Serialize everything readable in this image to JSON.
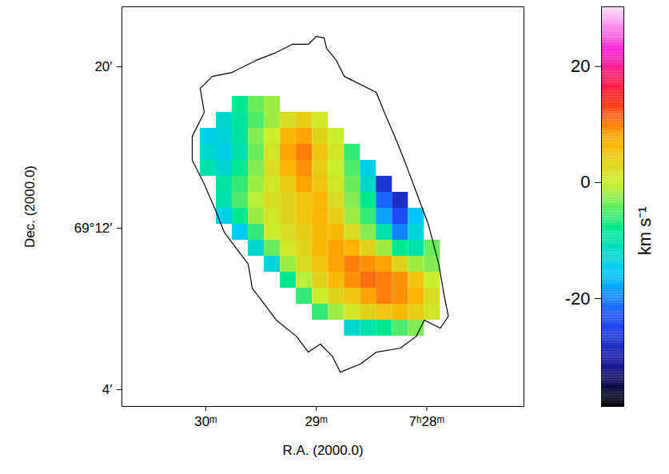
{
  "chart_data": {
    "type": "heatmap",
    "x_label": "R.A. (2000.0)",
    "y_label": "Dec. (2000.0)",
    "xlim": [
      30.76,
      27.12
    ],
    "ylim": [
      3.17,
      22.97
    ],
    "xticks": [
      {
        "value": 30,
        "label": "30ᵐ"
      },
      {
        "value": 29,
        "label": "29ᵐ"
      },
      {
        "value": 28,
        "label": "7ʰ28ᵐ"
      }
    ],
    "yticks": [
      {
        "value": 4,
        "label": "4′"
      },
      {
        "value": 12,
        "label": "69°12′"
      },
      {
        "value": 20,
        "label": "20′"
      }
    ],
    "x_edges": [
      30.051,
      29.906,
      29.761,
      29.616,
      29.471,
      29.326,
      29.181,
      29.036,
      28.891,
      28.746,
      28.601,
      28.457,
      28.312,
      28.167,
      28.022,
      27.877
    ],
    "y_edges": [
      18.535,
      17.743,
      16.95,
      16.158,
      15.366,
      14.574,
      13.782,
      12.99,
      12.198,
      11.406,
      10.614,
      9.822,
      9.03,
      8.238,
      7.446,
      6.653
    ],
    "values": [
      [
        null,
        null,
        -8,
        -4,
        -2,
        null,
        null,
        null,
        null,
        null,
        null,
        null,
        null,
        null,
        null
      ],
      [
        null,
        -12,
        -9,
        -5,
        -2,
        2,
        4,
        1,
        null,
        null,
        null,
        null,
        null,
        null,
        null
      ],
      [
        -14,
        -13,
        -9,
        -3,
        0,
        6,
        8,
        3,
        0,
        null,
        null,
        null,
        null,
        null,
        null
      ],
      [
        -12,
        -14,
        -10,
        -4,
        1,
        8,
        10,
        5,
        1,
        -6,
        null,
        null,
        null,
        null,
        null
      ],
      [
        -10,
        -12,
        -8,
        -3,
        2,
        7,
        9,
        4,
        0,
        -5,
        -14,
        null,
        null,
        null,
        null
      ],
      [
        null,
        -9,
        -6,
        -2,
        1,
        4,
        8,
        5,
        1,
        -4,
        -12,
        -27,
        null,
        null,
        null
      ],
      [
        null,
        -10,
        -5,
        -1,
        2,
        3,
        5,
        6,
        2,
        -3,
        -8,
        -22,
        -28,
        null,
        null
      ],
      [
        null,
        -14,
        -8,
        -2,
        1,
        3,
        5,
        7,
        4,
        -2,
        -6,
        -18,
        -24,
        -16,
        null
      ],
      [
        null,
        null,
        -15,
        -6,
        0,
        2,
        4,
        6,
        6,
        2,
        -3,
        -10,
        -20,
        -13,
        null
      ],
      [
        null,
        null,
        null,
        -12,
        -4,
        1,
        3,
        6,
        8,
        7,
        3,
        -2,
        -8,
        -10,
        -4
      ],
      [
        null,
        null,
        null,
        null,
        -13,
        -2,
        2,
        5,
        8,
        10,
        9,
        8,
        3,
        -2,
        -3
      ],
      [
        null,
        null,
        null,
        null,
        null,
        -8,
        -1,
        3,
        6,
        9,
        11,
        10,
        9,
        5,
        0
      ],
      [
        null,
        null,
        null,
        null,
        null,
        null,
        -6,
        0,
        3,
        5,
        8,
        10,
        9,
        7,
        2
      ],
      [
        null,
        null,
        null,
        null,
        null,
        null,
        null,
        -6,
        -2,
        1,
        3,
        5,
        6,
        4,
        1
      ],
      [
        null,
        null,
        null,
        null,
        null,
        null,
        null,
        null,
        null,
        -12,
        -10,
        -8,
        -5,
        -3,
        null
      ]
    ],
    "contour": [
      [
        29.0,
        21.5
      ],
      [
        28.93,
        21.43
      ],
      [
        28.906,
        20.91
      ],
      [
        28.819,
        20.32
      ],
      [
        28.746,
        19.52
      ],
      [
        28.457,
        18.73
      ],
      [
        28.384,
        17.74
      ],
      [
        28.275,
        16.36
      ],
      [
        28.203,
        15.37
      ],
      [
        28.094,
        13.78
      ],
      [
        27.986,
        12.2
      ],
      [
        27.891,
        10.22
      ],
      [
        27.841,
        8.63
      ],
      [
        27.804,
        7.64
      ],
      [
        27.877,
        7.05
      ],
      [
        28.022,
        7.45
      ],
      [
        28.094,
        6.65
      ],
      [
        28.239,
        6.06
      ],
      [
        28.457,
        5.86
      ],
      [
        28.601,
        5.27
      ],
      [
        28.783,
        4.87
      ],
      [
        28.855,
        5.66
      ],
      [
        28.964,
        6.26
      ],
      [
        29.072,
        5.86
      ],
      [
        29.181,
        6.65
      ],
      [
        29.362,
        7.45
      ],
      [
        29.471,
        8.24
      ],
      [
        29.58,
        9.03
      ],
      [
        29.616,
        10.22
      ],
      [
        29.725,
        11.01
      ],
      [
        29.833,
        11.8
      ],
      [
        29.92,
        12.99
      ],
      [
        30.014,
        14.18
      ],
      [
        30.123,
        15.37
      ],
      [
        30.123,
        16.55
      ],
      [
        30.014,
        17.74
      ],
      [
        30.051,
        18.93
      ],
      [
        29.942,
        19.52
      ],
      [
        29.761,
        19.72
      ],
      [
        29.543,
        20.32
      ],
      [
        29.362,
        20.71
      ],
      [
        29.217,
        21.11
      ],
      [
        29.072,
        21.11
      ]
    ],
    "colorbar": {
      "label": "km s⁻¹",
      "range": [
        -38.6,
        30.3
      ],
      "ticks": [
        -20,
        0,
        20
      ]
    }
  }
}
